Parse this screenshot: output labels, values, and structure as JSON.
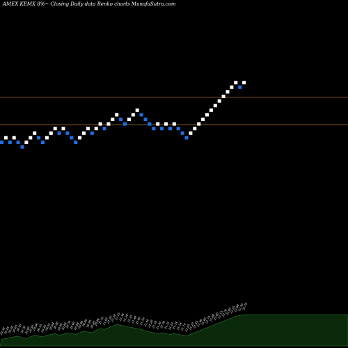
{
  "header": {
    "title": "AMEX  KEMX  8%~  Closing Daily data  Renko  charts MunafaSutra.com"
  },
  "colors": {
    "background": "#000000",
    "brick_up": "#ffffff",
    "brick_down": "#1e6fe6",
    "level_line": "#8b5a1e",
    "volume_fill": "#0b2a0b",
    "volume_edge": "#2f7a2f"
  },
  "chart_data": {
    "type": "renko",
    "title": "AMEX  KEMX  8%~  Closing Daily data  Renko  charts MunafaSutra.com",
    "grid": false,
    "legend": "none",
    "bricks": [
      {
        "level": 0,
        "dir": "down"
      },
      {
        "level": 1,
        "dir": "up"
      },
      {
        "level": 0,
        "dir": "down"
      },
      {
        "level": 1,
        "dir": "up"
      },
      {
        "level": 0,
        "dir": "down"
      },
      {
        "level": -1,
        "dir": "down"
      },
      {
        "level": 0,
        "dir": "up"
      },
      {
        "level": 1,
        "dir": "up"
      },
      {
        "level": 2,
        "dir": "up"
      },
      {
        "level": 1,
        "dir": "down"
      },
      {
        "level": 0,
        "dir": "down"
      },
      {
        "level": 1,
        "dir": "up"
      },
      {
        "level": 2,
        "dir": "up"
      },
      {
        "level": 3,
        "dir": "up"
      },
      {
        "level": 2,
        "dir": "down"
      },
      {
        "level": 3,
        "dir": "up"
      },
      {
        "level": 2,
        "dir": "down"
      },
      {
        "level": 1,
        "dir": "down"
      },
      {
        "level": 0,
        "dir": "down"
      },
      {
        "level": 1,
        "dir": "up"
      },
      {
        "level": 2,
        "dir": "up"
      },
      {
        "level": 3,
        "dir": "up"
      },
      {
        "level": 2,
        "dir": "down"
      },
      {
        "level": 3,
        "dir": "up"
      },
      {
        "level": 4,
        "dir": "up"
      },
      {
        "level": 3,
        "dir": "down"
      },
      {
        "level": 4,
        "dir": "up"
      },
      {
        "level": 5,
        "dir": "up"
      },
      {
        "level": 6,
        "dir": "up"
      },
      {
        "level": 5,
        "dir": "down"
      },
      {
        "level": 4,
        "dir": "down"
      },
      {
        "level": 5,
        "dir": "up"
      },
      {
        "level": 6,
        "dir": "up"
      },
      {
        "level": 7,
        "dir": "up"
      },
      {
        "level": 6,
        "dir": "down"
      },
      {
        "level": 5,
        "dir": "down"
      },
      {
        "level": 4,
        "dir": "down"
      },
      {
        "level": 3,
        "dir": "down"
      },
      {
        "level": 4,
        "dir": "up"
      },
      {
        "level": 3,
        "dir": "down"
      },
      {
        "level": 4,
        "dir": "up"
      },
      {
        "level": 3,
        "dir": "down"
      },
      {
        "level": 4,
        "dir": "up"
      },
      {
        "level": 3,
        "dir": "down"
      },
      {
        "level": 2,
        "dir": "down"
      },
      {
        "level": 1,
        "dir": "down"
      },
      {
        "level": 2,
        "dir": "up"
      },
      {
        "level": 3,
        "dir": "up"
      },
      {
        "level": 4,
        "dir": "up"
      },
      {
        "level": 5,
        "dir": "up"
      },
      {
        "level": 6,
        "dir": "up"
      },
      {
        "level": 7,
        "dir": "up"
      },
      {
        "level": 8,
        "dir": "up"
      },
      {
        "level": 9,
        "dir": "up"
      },
      {
        "level": 10,
        "dir": "up"
      },
      {
        "level": 11,
        "dir": "up"
      },
      {
        "level": 12,
        "dir": "up"
      },
      {
        "level": 13,
        "dir": "up"
      },
      {
        "level": 12,
        "dir": "down"
      },
      {
        "level": 13,
        "dir": "up"
      }
    ],
    "level_lines": [
      10,
      4
    ],
    "volume": [
      8,
      9,
      10,
      11,
      12,
      10,
      9,
      11,
      13,
      12,
      11,
      13,
      14,
      15,
      13,
      14,
      16,
      15,
      14,
      16,
      18,
      17,
      16,
      19,
      21,
      20,
      22,
      24,
      26,
      25,
      24,
      23,
      22,
      21,
      20,
      18,
      17,
      16,
      15,
      16,
      15,
      14,
      15,
      14,
      13,
      12,
      14,
      16,
      18,
      20,
      22,
      24,
      26,
      28,
      30,
      32,
      34,
      36,
      37,
      38
    ],
    "volume_labels": [
      "20.30",
      "20.45",
      "20.50",
      "20.65",
      "20.30",
      "20.20",
      "20.40",
      "20.50",
      "20.66",
      "20.45",
      "20.30",
      "20.55",
      "20.64",
      "20.90",
      "20.80",
      "20.86",
      "20.70",
      "20.60",
      "20.48",
      "20.66",
      "20.80",
      "20.95",
      "20.85",
      "20.96",
      "21.10",
      "21.00",
      "21.16",
      "21.30",
      "21.45",
      "21.36",
      "21.26",
      "21.35",
      "21.46",
      "21.60",
      "21.50",
      "21.40",
      "21.28",
      "21.18",
      "21.30",
      "21.20",
      "21.32",
      "21.22",
      "21.34",
      "21.24",
      "21.14",
      "21.05",
      "21.20",
      "21.35",
      "21.46",
      "21.60",
      "21.75",
      "21.88",
      "22.00",
      "22.15",
      "22.28",
      "22.40",
      "22.55",
      "22.68",
      "22.56",
      "22.70"
    ]
  }
}
